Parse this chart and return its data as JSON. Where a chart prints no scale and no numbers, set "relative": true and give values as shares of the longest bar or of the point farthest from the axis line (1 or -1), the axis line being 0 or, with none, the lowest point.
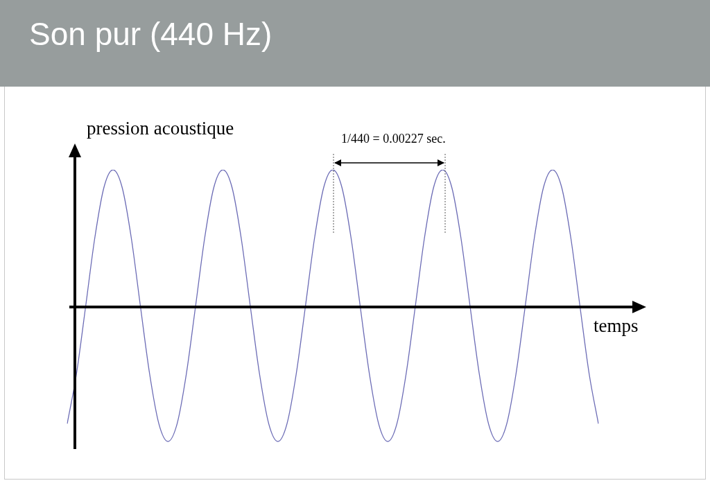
{
  "chart_data": {
    "type": "line",
    "title": "Son pur (440 Hz)",
    "ylabel": "pression acoustique",
    "xlabel": "temps",
    "annotations": [
      "1/440 = 0.00227 sec."
    ],
    "relative": true,
    "marker": "none",
    "legend": false,
    "categories": [
      null,
      null,
      null,
      null,
      null,
      null,
      null,
      null,
      null,
      null,
      null,
      null,
      null,
      null,
      null,
      null,
      null,
      null,
      null,
      null,
      null,
      null,
      null,
      null,
      null,
      null,
      null,
      null,
      null,
      null,
      null,
      null,
      null,
      null,
      null,
      null,
      null,
      null,
      null,
      null,
      null,
      null,
      null,
      null,
      null,
      null,
      null,
      null,
      null,
      null,
      null,
      null,
      null,
      null,
      null,
      null,
      null,
      null,
      null
    ],
    "series": [
      {
        "color": "#6b6bb5",
        "values": [
          -0.85,
          -0.49,
          0,
          0.5,
          0.87,
          1,
          0.87,
          0.5,
          0,
          -0.49,
          -0.85,
          -0.98,
          -0.85,
          -0.49,
          0,
          0.5,
          0.87,
          1,
          0.87,
          0.5,
          0,
          -0.49,
          -0.85,
          -0.98,
          -0.85,
          -0.49,
          0,
          0.5,
          0.87,
          1,
          0.87,
          0.5,
          0,
          -0.49,
          -0.85,
          -0.98,
          -0.85,
          -0.49,
          0,
          0.5,
          0.87,
          1,
          0.87,
          0.5,
          0,
          -0.49,
          -0.85,
          -0.98,
          -0.85,
          -0.49,
          0,
          0.5,
          0.87,
          1,
          0.87,
          0.5,
          0,
          -0.49,
          -0.85
        ]
      }
    ]
  }
}
